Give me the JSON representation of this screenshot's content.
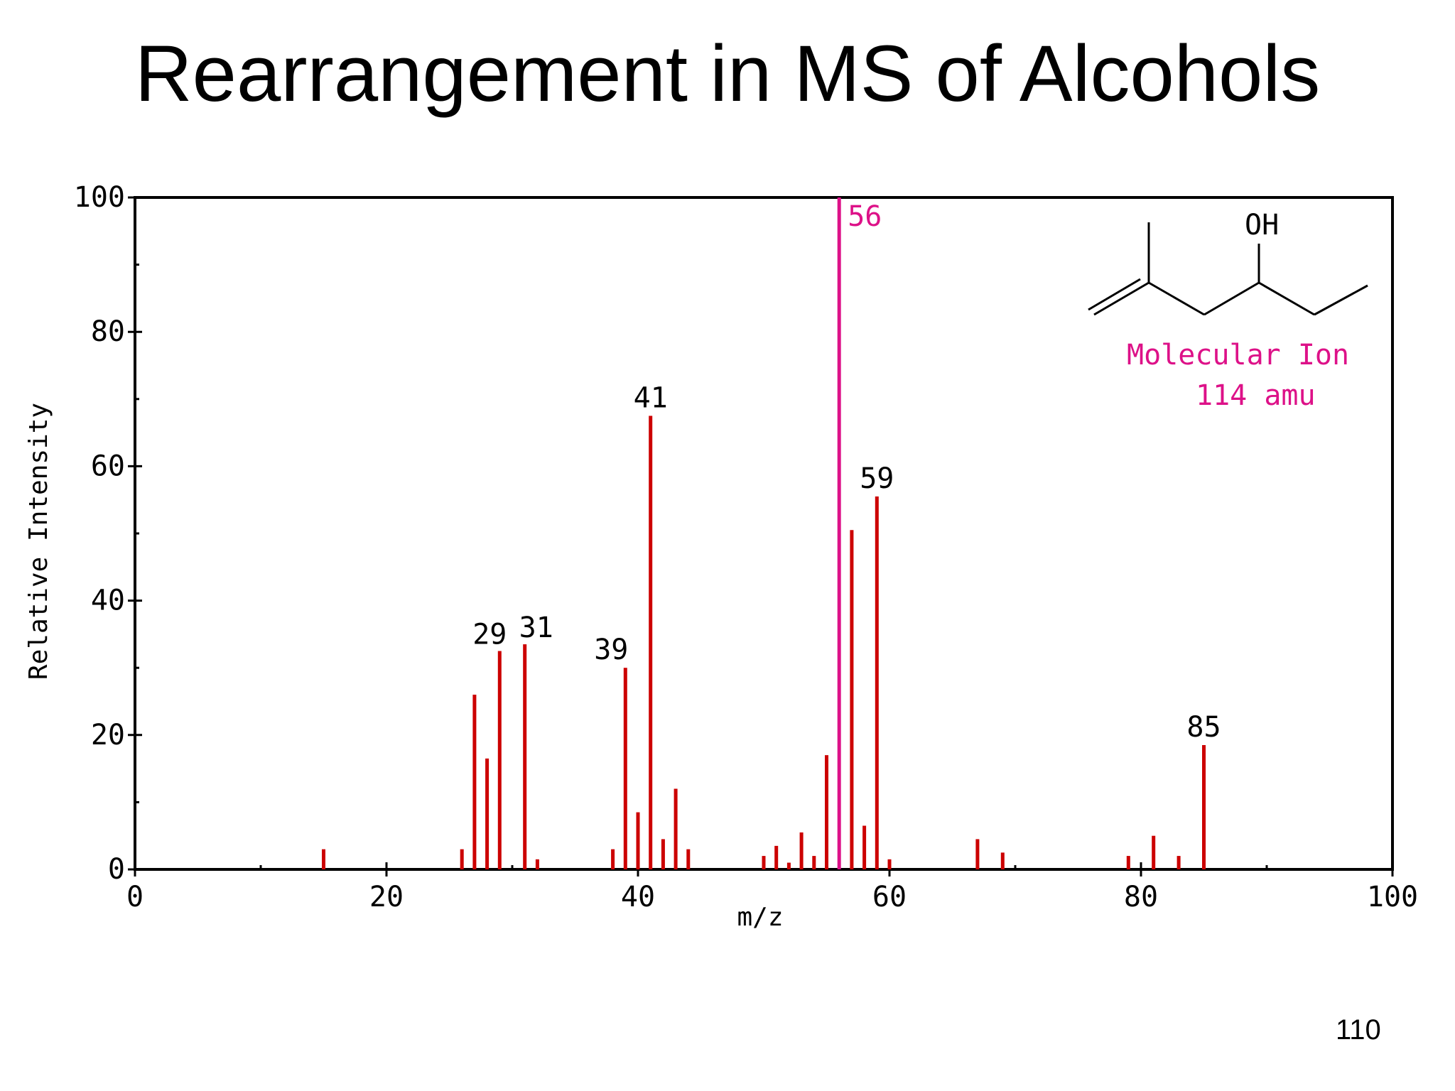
{
  "slide": {
    "title": "Rearrangement in MS of Alcohols",
    "page_number": "110"
  },
  "chart_data": {
    "type": "bar",
    "title": "",
    "xlabel": "m/z",
    "ylabel": "Relative Intensity",
    "xlim": [
      0,
      100
    ],
    "ylim": [
      0,
      100
    ],
    "x_ticks": [
      0,
      20,
      40,
      60,
      80,
      100
    ],
    "y_ticks": [
      0,
      20,
      40,
      60,
      80,
      100
    ],
    "x_minor_step": 10,
    "y_minor_step": 10,
    "grid": false,
    "bar_color": "#cc0000",
    "base_peak_color": "#dd1188",
    "peaks": [
      {
        "mz": 15,
        "intensity": 3
      },
      {
        "mz": 26,
        "intensity": 3
      },
      {
        "mz": 27,
        "intensity": 26
      },
      {
        "mz": 28,
        "intensity": 16.5
      },
      {
        "mz": 29,
        "intensity": 32.5,
        "label": "29"
      },
      {
        "mz": 31,
        "intensity": 33.5,
        "label": "31"
      },
      {
        "mz": 32,
        "intensity": 1.5
      },
      {
        "mz": 38,
        "intensity": 3
      },
      {
        "mz": 39,
        "intensity": 30,
        "label": "39"
      },
      {
        "mz": 40,
        "intensity": 8.5
      },
      {
        "mz": 41,
        "intensity": 67.5,
        "label": "41"
      },
      {
        "mz": 42,
        "intensity": 4.5
      },
      {
        "mz": 43,
        "intensity": 12
      },
      {
        "mz": 44,
        "intensity": 3
      },
      {
        "mz": 50,
        "intensity": 2
      },
      {
        "mz": 51,
        "intensity": 3.5
      },
      {
        "mz": 52,
        "intensity": 1
      },
      {
        "mz": 53,
        "intensity": 5.5
      },
      {
        "mz": 54,
        "intensity": 2
      },
      {
        "mz": 55,
        "intensity": 17
      },
      {
        "mz": 56,
        "intensity": 100,
        "label": "56",
        "base_peak": true
      },
      {
        "mz": 57,
        "intensity": 50.5
      },
      {
        "mz": 58,
        "intensity": 6.5
      },
      {
        "mz": 59,
        "intensity": 55.5,
        "label": "59"
      },
      {
        "mz": 60,
        "intensity": 1.5
      },
      {
        "mz": 67,
        "intensity": 4.5
      },
      {
        "mz": 69,
        "intensity": 2.5
      },
      {
        "mz": 79,
        "intensity": 2
      },
      {
        "mz": 81,
        "intensity": 5
      },
      {
        "mz": 83,
        "intensity": 2
      },
      {
        "mz": 85,
        "intensity": 18.5,
        "label": "85"
      }
    ],
    "annotations": {
      "structure_label": "OH",
      "molecular_ion_line1": "Molecular Ion",
      "molecular_ion_line2": "114 amu",
      "annotation_color": "#dd1188"
    }
  }
}
